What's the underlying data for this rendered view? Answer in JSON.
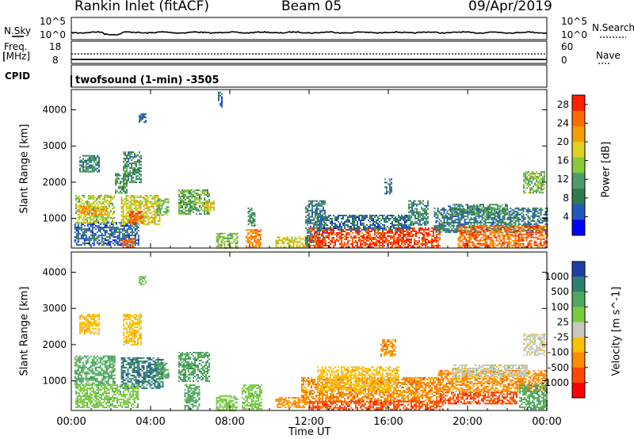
{
  "header": {
    "title_left": "Rankin Inlet (fitACF)",
    "title_center": "Beam 05",
    "title_right": "09/Apr/2019"
  },
  "status_panels": {
    "nsky_label": "N.Sky",
    "nsky_ticks": [
      "10^5",
      "10^0"
    ],
    "nsearch_label": "N.Search",
    "freq_label": "Freq.",
    "freq_unit": "[MHz]",
    "freq_ticks": [
      "18",
      "8"
    ],
    "nave_label": "Nave",
    "nave_ticks": [
      "60",
      "0"
    ],
    "cpid_label": "CPID",
    "cpid_value": "twofsound (1-min) -3505"
  },
  "chart_data": [
    {
      "type": "heatmap",
      "name": "power",
      "xlabel": "",
      "ylabel": "Slant Range [km]",
      "x_ticks": [
        "00:00",
        "04:00",
        "08:00",
        "12:00",
        "16:00",
        "20:00",
        "00:00"
      ],
      "xlim_hours": [
        0,
        24
      ],
      "y_ticks": [
        1000,
        2000,
        3000,
        4000
      ],
      "ylim": [
        180,
        4560
      ],
      "colorbar_label": "Power [dB]",
      "colorbar_ticks": [
        4,
        8,
        12,
        16,
        20,
        24,
        28
      ],
      "colorbar_range": [
        0,
        30
      ],
      "colormap": [
        "#0000ff",
        "#2357c0",
        "#2f7a4e",
        "#4f9c6a",
        "#8cc83c",
        "#e0d020",
        "#f5a000",
        "#ff6a00",
        "#ff2000"
      ],
      "regions": [
        {
          "t0": 0.15,
          "t1": 3.4,
          "r0": 250,
          "r1": 900,
          "v": 6
        },
        {
          "t0": 0.2,
          "t1": 2.2,
          "r0": 900,
          "r1": 1650,
          "v": 16
        },
        {
          "t0": 0.3,
          "t1": 1.8,
          "r0": 1100,
          "r1": 1350,
          "v": 22
        },
        {
          "t0": 0.4,
          "t1": 1.4,
          "r0": 2300,
          "r1": 2750,
          "v": 9
        },
        {
          "t0": 2.2,
          "t1": 2.8,
          "r0": 1700,
          "r1": 2250,
          "v": 11
        },
        {
          "t0": 2.5,
          "t1": 4.5,
          "r0": 850,
          "r1": 1650,
          "v": 18
        },
        {
          "t0": 2.9,
          "t1": 3.6,
          "r0": 850,
          "r1": 1200,
          "v": 26
        },
        {
          "t0": 2.6,
          "t1": 3.5,
          "r0": 2000,
          "r1": 2850,
          "v": 10
        },
        {
          "t0": 3.4,
          "t1": 3.8,
          "r0": 3650,
          "r1": 3900,
          "v": 7
        },
        {
          "t0": 4.3,
          "t1": 4.9,
          "r0": 1100,
          "r1": 1550,
          "v": 14
        },
        {
          "t0": 5.4,
          "t1": 7.0,
          "r0": 1100,
          "r1": 1800,
          "v": 13
        },
        {
          "t0": 6.6,
          "t1": 7.2,
          "r0": 1200,
          "r1": 1500,
          "v": 18
        },
        {
          "t0": 2.5,
          "t1": 3.2,
          "r0": 200,
          "r1": 450,
          "v": 26
        },
        {
          "t0": 7.3,
          "t1": 8.4,
          "r0": 200,
          "r1": 600,
          "v": 14
        },
        {
          "t0": 8.8,
          "t1": 9.6,
          "r0": 200,
          "r1": 700,
          "v": 23
        },
        {
          "t0": 8.9,
          "t1": 9.3,
          "r0": 800,
          "r1": 1300,
          "v": 10
        },
        {
          "t0": 10.3,
          "t1": 12.0,
          "r0": 200,
          "r1": 500,
          "v": 18
        },
        {
          "t0": 11.8,
          "t1": 12.8,
          "r0": 250,
          "r1": 1500,
          "v": 8
        },
        {
          "t0": 12.0,
          "t1": 18.6,
          "r0": 200,
          "r1": 750,
          "v": 27
        },
        {
          "t0": 12.4,
          "t1": 17.2,
          "r0": 700,
          "r1": 1100,
          "v": 7
        },
        {
          "t0": 17.0,
          "t1": 18.0,
          "r0": 800,
          "r1": 1500,
          "v": 9
        },
        {
          "t0": 18.3,
          "t1": 24.0,
          "r0": 600,
          "r1": 1300,
          "v": 8
        },
        {
          "t0": 19.0,
          "t1": 22.0,
          "r0": 1100,
          "r1": 1400,
          "v": 10
        },
        {
          "t0": 19.5,
          "t1": 24.0,
          "r0": 200,
          "r1": 800,
          "v": 25
        },
        {
          "t0": 22.8,
          "t1": 23.9,
          "r0": 1700,
          "r1": 2300,
          "v": 14
        },
        {
          "t0": 7.4,
          "t1": 7.6,
          "r0": 4100,
          "r1": 4500,
          "v": 6
        },
        {
          "t0": 15.8,
          "t1": 16.2,
          "r0": 1700,
          "r1": 2100,
          "v": 8
        }
      ]
    },
    {
      "type": "heatmap",
      "name": "velocity",
      "xlabel": "Time UT",
      "ylabel": "Slant Range [km]",
      "x_ticks": [
        "00:00",
        "04:00",
        "08:00",
        "12:00",
        "16:00",
        "20:00",
        "00:00"
      ],
      "xlim_hours": [
        0,
        24
      ],
      "y_ticks": [
        1000,
        2000,
        3000,
        4000
      ],
      "ylim": [
        180,
        4560
      ],
      "colorbar_label": "Velocity [m s^-1]",
      "colorbar_ticks": [
        "1000",
        "500",
        "100",
        "25",
        "-25",
        "-100",
        "-500",
        "-1000"
      ],
      "colormap": [
        "#1f3ea8",
        "#2f7f70",
        "#4fa860",
        "#78cc3c",
        "#c8c8c0",
        "#ffc000",
        "#ff8c00",
        "#ff4a00",
        "#ff0000"
      ],
      "regions": [
        {
          "t0": 0.15,
          "t1": 2.2,
          "r0": 900,
          "r1": 1700,
          "v": 2
        },
        {
          "t0": 0.4,
          "t1": 1.4,
          "r0": 2300,
          "r1": 2850,
          "v": 5
        },
        {
          "t0": 2.5,
          "t1": 4.6,
          "r0": 800,
          "r1": 1650,
          "v": 1
        },
        {
          "t0": 2.6,
          "t1": 3.5,
          "r0": 2000,
          "r1": 2850,
          "v": 5
        },
        {
          "t0": 4.3,
          "t1": 4.9,
          "r0": 1100,
          "r1": 1500,
          "v": 2
        },
        {
          "t0": 5.4,
          "t1": 7.0,
          "r0": 1000,
          "r1": 1800,
          "v": 2
        },
        {
          "t0": 0.2,
          "t1": 3.4,
          "r0": 250,
          "r1": 900,
          "v": 3
        },
        {
          "t0": 3.4,
          "t1": 3.8,
          "r0": 3650,
          "r1": 3900,
          "v": 3
        },
        {
          "t0": 5.7,
          "t1": 6.5,
          "r0": 200,
          "r1": 900,
          "v": 2
        },
        {
          "t0": 7.3,
          "t1": 8.4,
          "r0": 200,
          "r1": 600,
          "v": 3
        },
        {
          "t0": 8.6,
          "t1": 9.6,
          "r0": 200,
          "r1": 900,
          "v": 3
        },
        {
          "t0": 10.3,
          "t1": 12.0,
          "r0": 250,
          "r1": 550,
          "v": 6
        },
        {
          "t0": 11.6,
          "t1": 18.8,
          "r0": 400,
          "r1": 1100,
          "v": 6
        },
        {
          "t0": 12.0,
          "t1": 18.8,
          "r0": 200,
          "r1": 450,
          "v": 7
        },
        {
          "t0": 12.4,
          "t1": 16.5,
          "r0": 700,
          "r1": 1400,
          "v": 5
        },
        {
          "t0": 18.6,
          "t1": 22.5,
          "r0": 350,
          "r1": 700,
          "v": 7
        },
        {
          "t0": 18.5,
          "t1": 24.0,
          "r0": 700,
          "r1": 1300,
          "v": 6
        },
        {
          "t0": 19.2,
          "t1": 23.0,
          "r0": 1100,
          "r1": 1450,
          "v": 4
        },
        {
          "t0": 22.8,
          "t1": 23.9,
          "r0": 1700,
          "r1": 2300,
          "v": 4
        },
        {
          "t0": 22.6,
          "t1": 24.0,
          "r0": 200,
          "r1": 900,
          "v": 2
        },
        {
          "t0": 15.6,
          "t1": 16.4,
          "r0": 1700,
          "r1": 2150,
          "v": 6
        }
      ]
    }
  ]
}
